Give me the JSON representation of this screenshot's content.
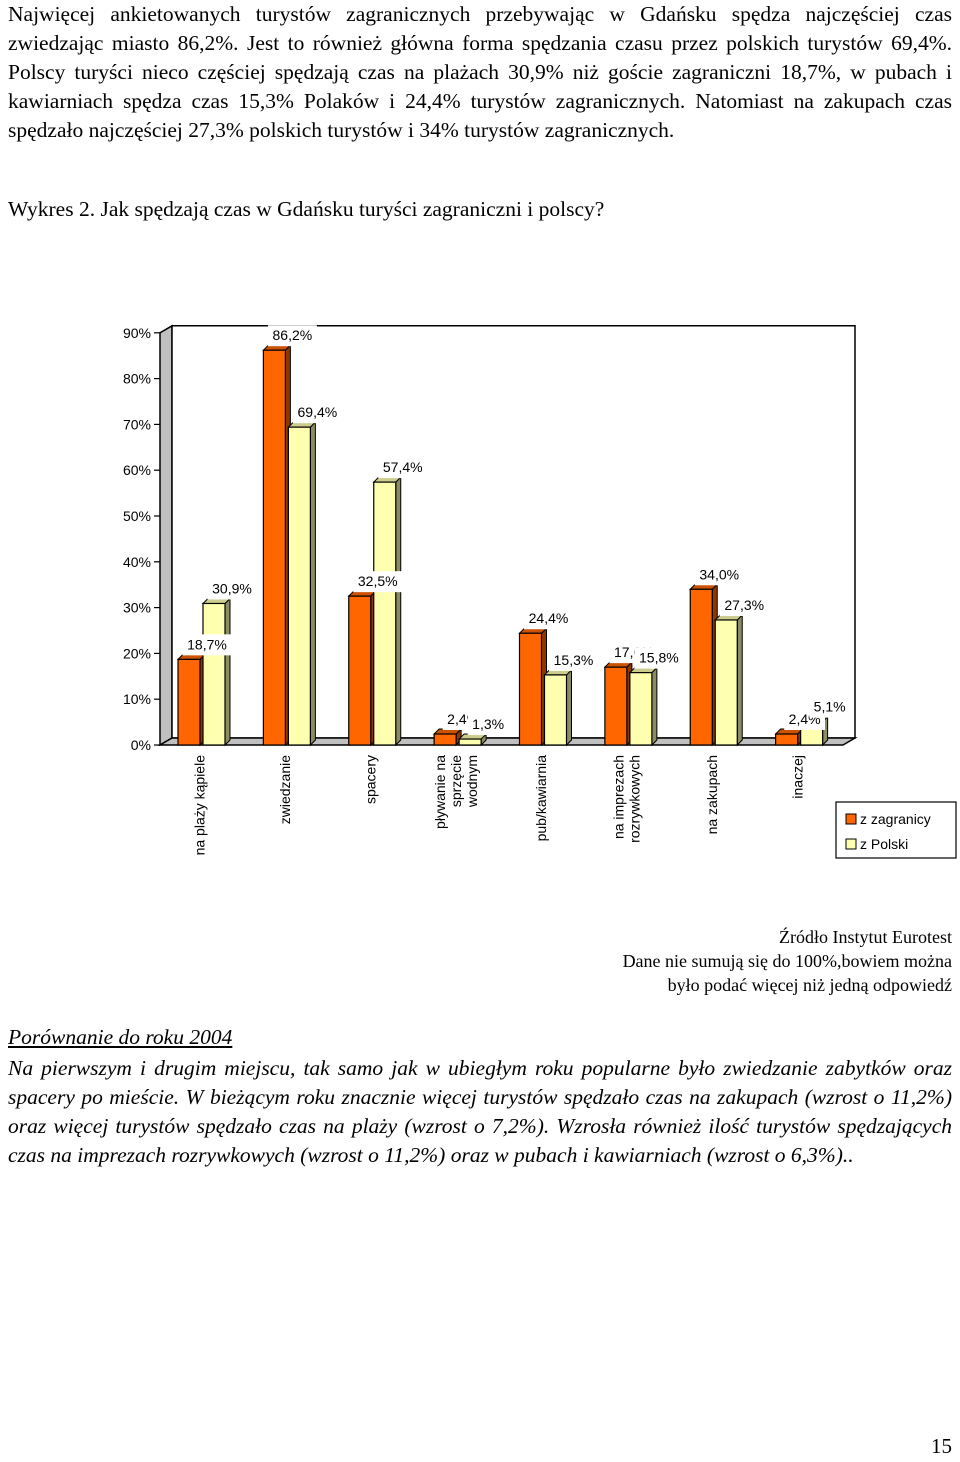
{
  "intro": {
    "text": "Najwięcej ankietowanych turystów zagranicznych przebywając w Gdańsku spędza najczęściej czas zwiedzając miasto 86,2%. Jest to również główna forma spędzania czasu przez polskich turystów 69,4%. Polscy turyści nieco częściej spędzają czas na plażach 30,9% niż goście zagraniczni 18,7%, w pubach i kawiarniach spędza czas 15,3% Polaków i 24,4% turystów zagranicznych. Natomiast na zakupach czas spędzało najczęściej 27,3% polskich turystów i 34% turystów zagranicznych."
  },
  "figure": {
    "caption": "Wykres 2.  Jak spędzają czas w Gdańsku turyści zagraniczni i polscy?"
  },
  "colors": {
    "z_zagranicy": "#ff6600",
    "z_polski": "#ffffb0",
    "axis": "#000000",
    "wall_side": "#c0c0c0"
  },
  "chart_data": {
    "type": "bar",
    "categories": [
      "na plaży kąpiele",
      "zwiedzanie",
      "spacery",
      "pływanie na sprzęcie wodnym",
      "pub/kawiarnia",
      "na imprezach rozrywkowych",
      "na zakupach",
      "inaczej"
    ],
    "category_lines": [
      [
        "na plaży kąpiele"
      ],
      [
        "zwiedzanie"
      ],
      [
        "spacery"
      ],
      [
        "pływanie na",
        "sprzęcie",
        "wodnym"
      ],
      [
        "pub/kawiarnia"
      ],
      [
        "na imprezach",
        "rozrywkowych"
      ],
      [
        "na zakupach"
      ],
      [
        "inaczej"
      ]
    ],
    "series": [
      {
        "name": "z zagranicy",
        "values": [
          18.7,
          86.2,
          32.5,
          2.4,
          24.4,
          17.0,
          34.0,
          2.4
        ],
        "labels": [
          "18,7%",
          "86,2%",
          "32,5%",
          "2,4%",
          "24,4%",
          "17,0%",
          "34,0%",
          "2,4%"
        ]
      },
      {
        "name": "z Polski",
        "values": [
          30.9,
          69.4,
          57.4,
          1.3,
          15.3,
          15.8,
          27.3,
          5.1
        ],
        "labels": [
          "30,9%",
          "69,4%",
          "57,4%",
          "1,3%",
          "15,3%",
          "15,8%",
          "27,3%",
          "5,1%"
        ]
      }
    ],
    "yticks": [
      "0%",
      "10%",
      "20%",
      "30%",
      "40%",
      "50%",
      "60%",
      "70%",
      "80%",
      "90%"
    ],
    "ylim": [
      0,
      90
    ],
    "grid": false,
    "legend_position": "right"
  },
  "notes": {
    "source": "Źródło Instytut Eurotest",
    "disclaimer_line1": "Dane nie sumują się do 100%,bowiem można",
    "disclaimer_line2": "było podać więcej niż jedną odpowiedź"
  },
  "comparison": {
    "heading": "Porównanie do roku 2004",
    "body": "Na pierwszym i drugim miejscu, tak samo jak w ubiegłym roku popularne było zwiedzanie zabytków oraz spacery po mieście. W bieżącym roku znacznie więcej turystów spędzało czas na zakupach (wzrost o 11,2%) oraz więcej turystów spędzało czas na plaży (wzrost o 7,2%). Wzrosła również ilość turystów spędzających czas na imprezach rozrywkowych (wzrost o 11,2%) oraz w pubach i kawiarniach (wzrost o 6,3%).."
  },
  "page": {
    "number": "15"
  }
}
